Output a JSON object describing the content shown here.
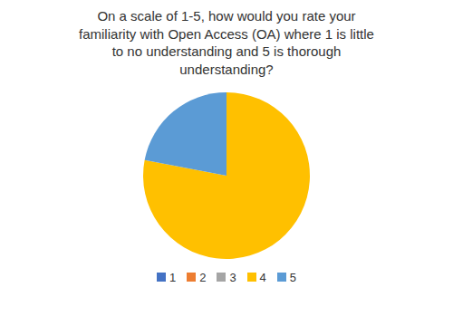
{
  "chart_data": {
    "type": "pie",
    "title": "On a scale of 1-5, how would you rate your\nfamiliarity with Open Access (OA) where 1 is little\nto no understanding and 5 is thorough\nunderstanding?",
    "categories": [
      "1",
      "2",
      "3",
      "4",
      "5"
    ],
    "values": [
      0,
      0,
      0,
      78,
      22
    ],
    "colors": [
      "#4472c4",
      "#ed7d31",
      "#a5a5a5",
      "#ffc000",
      "#5b9bd5"
    ],
    "legend": "bottom"
  }
}
